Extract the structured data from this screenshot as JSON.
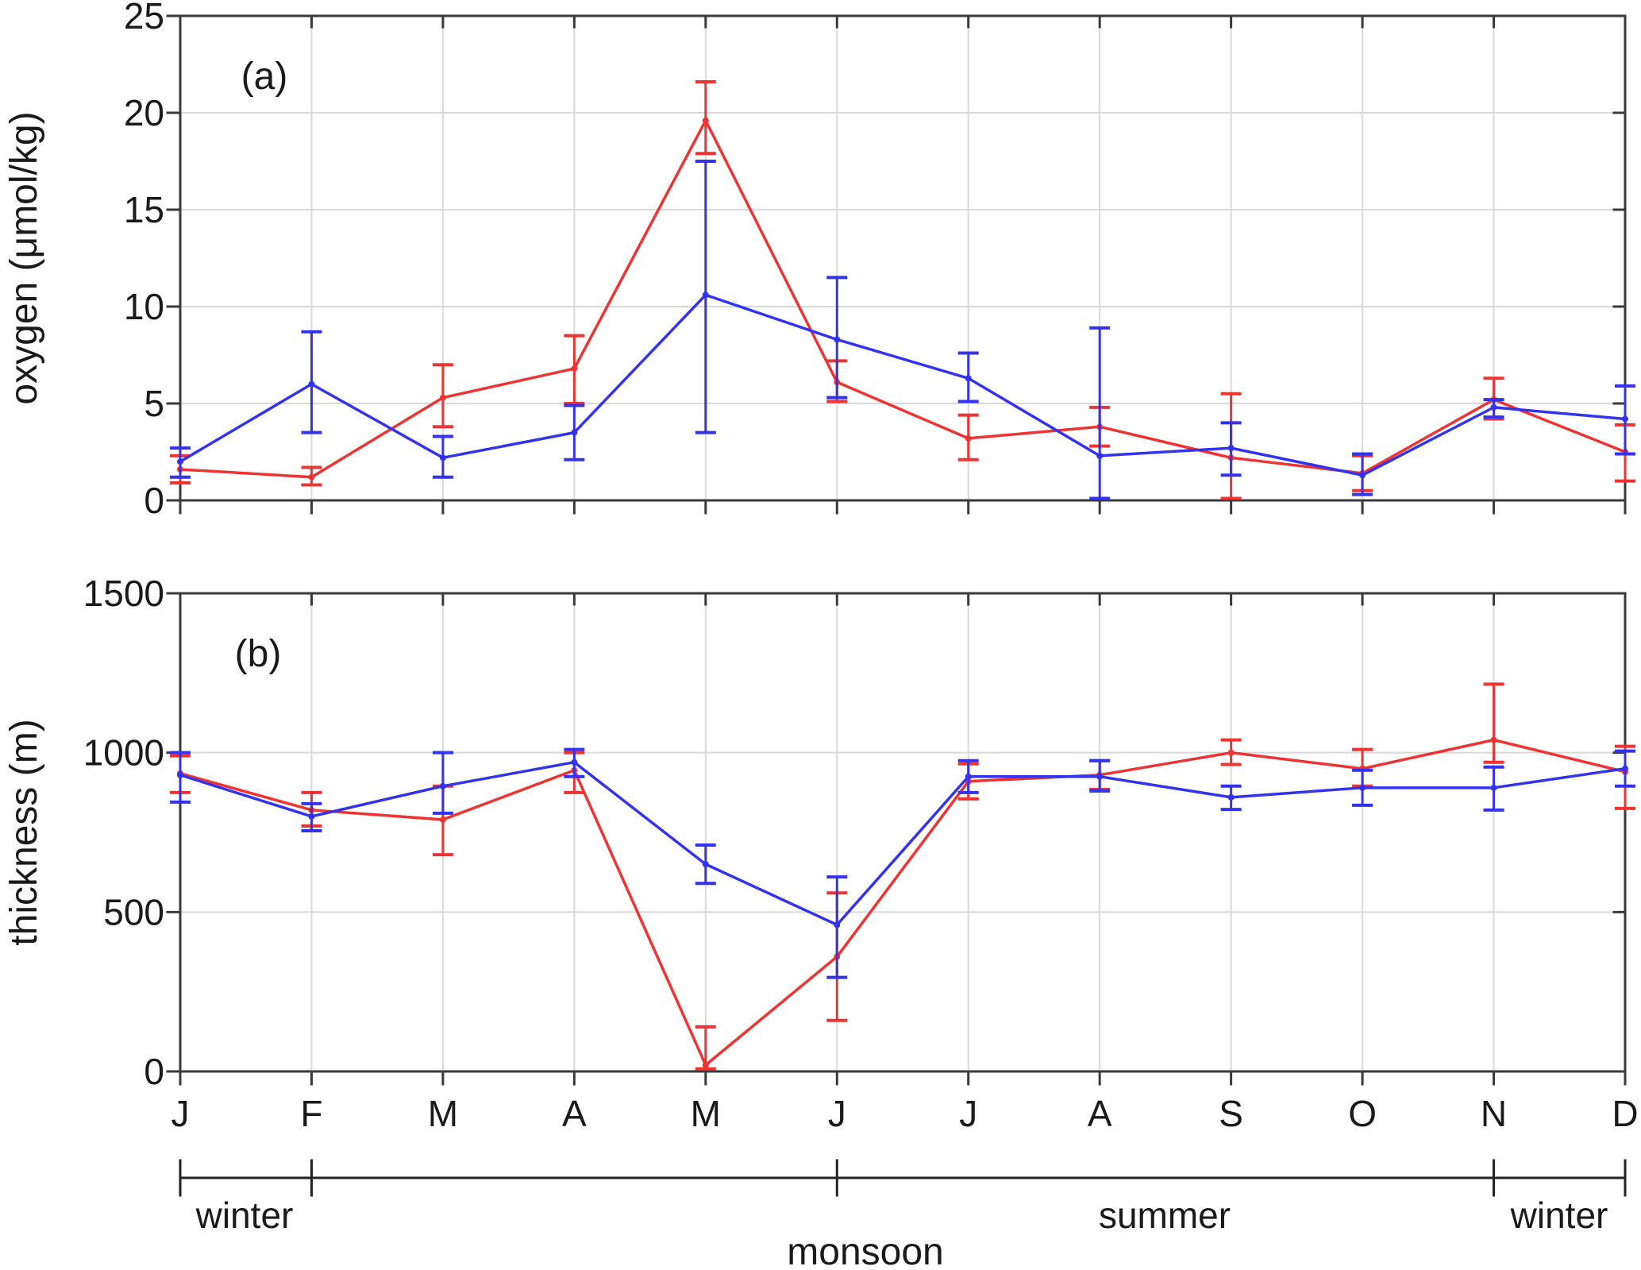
{
  "figure": {
    "background": "#ffffff"
  },
  "months": [
    "J",
    "F",
    "M",
    "A",
    "M",
    "J",
    "J",
    "A",
    "S",
    "O",
    "N",
    "D"
  ],
  "chart_data": [
    {
      "type": "line",
      "panel_tag": "(a)",
      "ylabel": "oxygen (μmol/kg)",
      "xlabel": "",
      "ylim": [
        0,
        25
      ],
      "yticks": [
        0,
        5,
        10,
        15,
        20,
        25
      ],
      "grid": true,
      "legend_position": "none",
      "categories": [
        "J",
        "F",
        "M",
        "A",
        "M",
        "J",
        "J",
        "A",
        "S",
        "O",
        "N",
        "D"
      ],
      "series": [
        {
          "name": "red",
          "color": "#ee3333",
          "values": [
            1.6,
            1.2,
            5.3,
            6.8,
            19.6,
            6.1,
            3.2,
            3.8,
            2.2,
            1.4,
            5.2,
            2.5
          ],
          "err_lo": [
            0.9,
            0.8,
            3.8,
            5.0,
            17.9,
            5.1,
            2.1,
            2.8,
            0.1,
            0.5,
            4.2,
            1.0
          ],
          "err_hi": [
            2.3,
            1.7,
            7.0,
            8.5,
            21.6,
            7.2,
            4.4,
            4.8,
            5.5,
            2.3,
            6.3,
            3.9
          ]
        },
        {
          "name": "blue",
          "color": "#3333ee",
          "values": [
            2.0,
            6.0,
            2.2,
            3.5,
            10.6,
            8.3,
            6.3,
            2.3,
            2.7,
            1.3,
            4.8,
            4.2
          ],
          "err_lo": [
            1.2,
            3.5,
            1.2,
            2.1,
            3.5,
            5.3,
            5.1,
            0.1,
            1.3,
            0.3,
            4.3,
            2.4
          ],
          "err_hi": [
            2.7,
            8.7,
            3.3,
            4.9,
            17.5,
            11.5,
            7.6,
            8.9,
            4.0,
            2.4,
            5.2,
            5.9
          ]
        }
      ]
    },
    {
      "type": "line",
      "panel_tag": "(b)",
      "ylabel": "thickness (m)",
      "xlabel": "",
      "ylim": [
        0,
        1500
      ],
      "yticks": [
        0,
        500,
        1000,
        1500
      ],
      "grid": true,
      "legend_position": "none",
      "categories": [
        "J",
        "F",
        "M",
        "A",
        "M",
        "J",
        "J",
        "A",
        "S",
        "O",
        "N",
        "D"
      ],
      "series": [
        {
          "name": "red",
          "color": "#ee3333",
          "values": [
            935,
            820,
            790,
            945,
            20,
            360,
            910,
            930,
            1000,
            950,
            1040,
            940
          ],
          "err_lo": [
            875,
            770,
            680,
            875,
            8,
            160,
            855,
            885,
            963,
            895,
            970,
            825
          ],
          "err_hi": [
            990,
            875,
            895,
            1000,
            140,
            560,
            965,
            975,
            1040,
            1010,
            1215,
            1020
          ]
        },
        {
          "name": "blue",
          "color": "#3333ee",
          "values": [
            930,
            800,
            895,
            970,
            650,
            460,
            925,
            925,
            860,
            890,
            890,
            950
          ],
          "err_lo": [
            845,
            755,
            810,
            925,
            590,
            295,
            875,
            880,
            822,
            835,
            820,
            895
          ],
          "err_hi": [
            1000,
            840,
            1000,
            1010,
            710,
            610,
            975,
            975,
            895,
            945,
            955,
            1005
          ]
        }
      ]
    }
  ],
  "monsoon_axis": {
    "label": "monsoon",
    "tick_month_indices": [
      0,
      1,
      5,
      10,
      11
    ],
    "seasons": [
      {
        "label": "winter",
        "start_index": 0,
        "end_index": 1
      },
      {
        "label": "summer",
        "start_index": 5,
        "end_index": 10
      },
      {
        "label": "winter",
        "start_index": 10,
        "end_index": 11
      }
    ]
  },
  "colors": {
    "red_series": "#ee3333",
    "blue_series": "#3333ee",
    "grid": "#d9d9d9",
    "axis": "#3a3a3a",
    "text": "#1a1a1a"
  }
}
